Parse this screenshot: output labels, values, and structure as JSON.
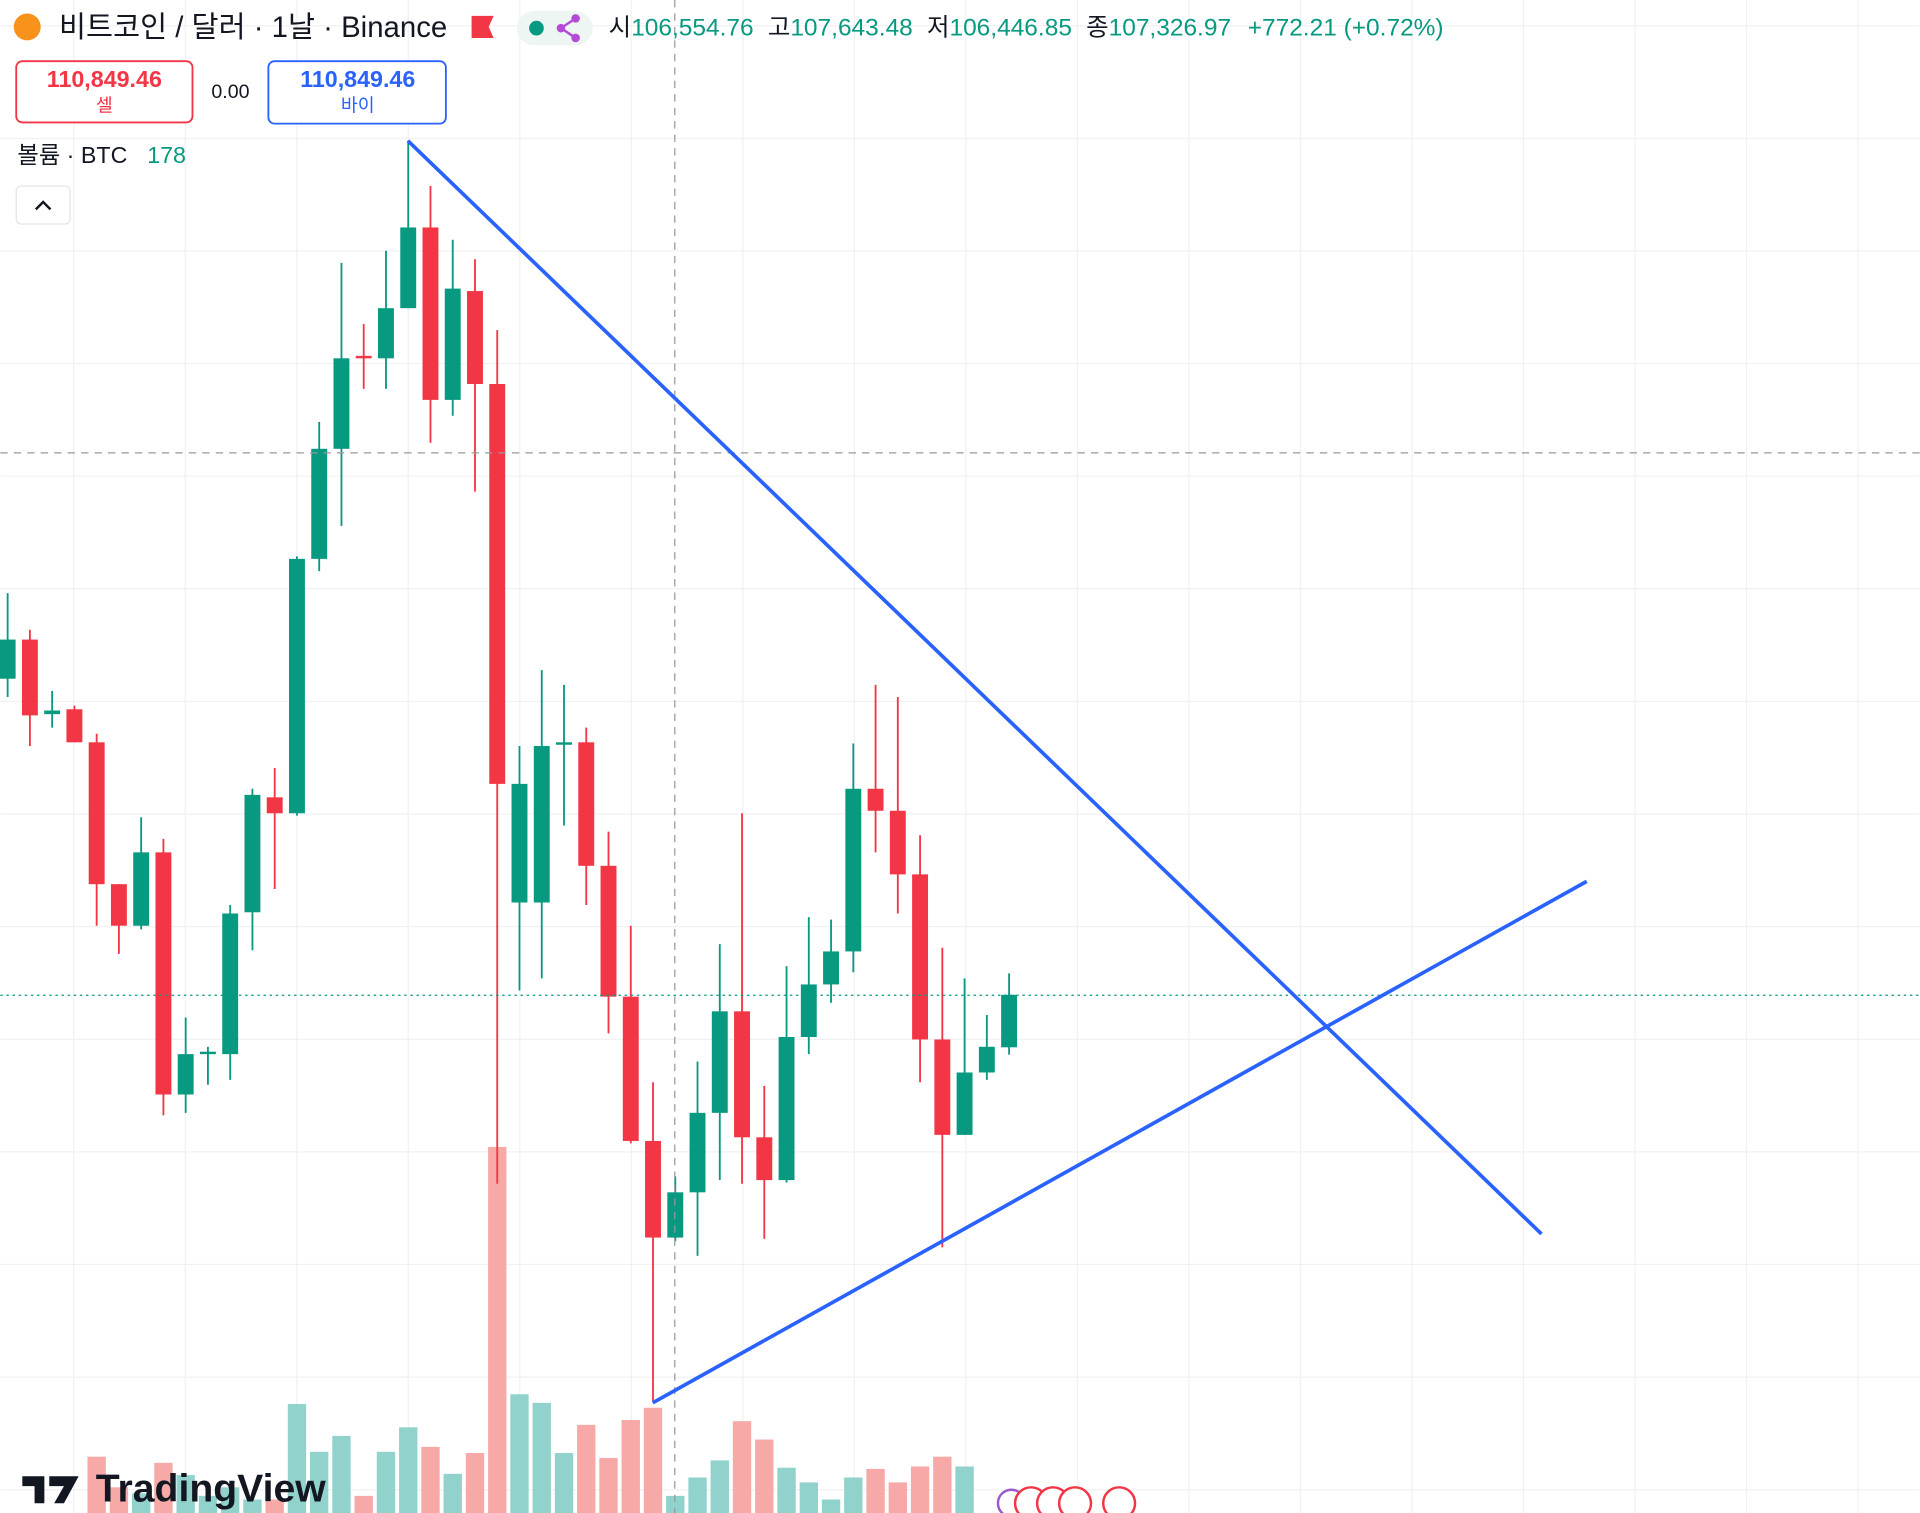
{
  "header": {
    "title": "비트코인 / 달러 · 1날 · Binance",
    "ohlc": [
      {
        "label": "시",
        "value": "106,554.76"
      },
      {
        "label": "고",
        "value": "107,643.48"
      },
      {
        "label": "저",
        "value": "106,446.85"
      },
      {
        "label": "종",
        "value": "107,326.97"
      }
    ],
    "change": "+772.21 (+0.72%)"
  },
  "trade_panel": {
    "sell_price": "110,849.46",
    "sell_label": "셀",
    "spread": "0.00",
    "buy_price": "110,849.46",
    "buy_label": "바이"
  },
  "volume_legend": {
    "label": "볼륨 · BTC",
    "value": "178"
  },
  "branding": "TradingView",
  "chart_data": {
    "type": "candlestick",
    "open": [
      111980,
      112556,
      111458,
      111530,
      111044,
      108956,
      108344,
      109424,
      105860,
      106454,
      106454,
      108542,
      110234,
      110000,
      113744,
      115364,
      116732,
      116696,
      117434,
      118622,
      116084,
      117686,
      116318,
      108686,
      108686,
      111008,
      111044,
      109226,
      107300,
      105176,
      103754,
      104420,
      105590,
      107084,
      105230,
      104600,
      106706,
      107480,
      107966,
      110360,
      110036,
      109100,
      106670,
      105266,
      106184,
      106554.76
    ],
    "high": [
      113240,
      112700,
      111800,
      111584,
      111170,
      108956,
      109940,
      109622,
      106994,
      106562,
      108650,
      110360,
      110666,
      113780,
      115760,
      118100,
      117200,
      118280,
      119900,
      119234,
      118442,
      118154,
      117110,
      110990,
      112106,
      111890,
      111260,
      109730,
      108344,
      106040,
      104654,
      106346,
      108074,
      110000,
      105986,
      107750,
      108470,
      108434,
      111026,
      111890,
      111710,
      109676,
      108020,
      107570,
      107030,
      107643.48
    ],
    "low": [
      111710,
      110990,
      111260,
      111044,
      108344,
      107930,
      108290,
      105554,
      105590,
      106004,
      106076,
      107984,
      108884,
      109964,
      113564,
      114230,
      116246,
      116246,
      117434,
      115454,
      115850,
      114734,
      104546,
      107390,
      107570,
      109820,
      108650,
      106760,
      105140,
      101342,
      103700,
      103484,
      104600,
      104546,
      103736,
      104564,
      106454,
      107210,
      107660,
      109424,
      108524,
      106040,
      103610,
      105266,
      106076,
      106446.85
    ],
    "close": [
      112556,
      111440,
      111512,
      111044,
      108956,
      108344,
      109424,
      105860,
      106454,
      106490,
      108524,
      110270,
      110000,
      113744,
      115364,
      116696,
      116696,
      117434,
      118622,
      116084,
      117722,
      116318,
      110432,
      110432,
      110990,
      111044,
      109226,
      107300,
      105176,
      103754,
      104420,
      105590,
      107084,
      105230,
      104600,
      106706,
      107480,
      107966,
      110360,
      110036,
      109100,
      106670,
      105266,
      106184,
      106562,
      107326.97
    ],
    "volume": [
      null,
      null,
      null,
      null,
      4600,
      2100,
      1600,
      4100,
      3100,
      1400,
      2100,
      1100,
      1100,
      8900,
      5000,
      6300,
      1400,
      5000,
      7000,
      5400,
      3200,
      4900,
      29900,
      9700,
      9000,
      4900,
      7200,
      4500,
      7600,
      8600,
      1400,
      2900,
      4300,
      7500,
      6000,
      3700,
      2500,
      1100,
      2900,
      3600,
      2500,
      3800,
      4600,
      3800,
      null,
      178
    ],
    "ylim": [
      99700,
      121970
    ],
    "vlim": [
      0,
      30000
    ],
    "up_color": "#089981",
    "down_color": "#f23645",
    "volume_up_color": "#92d2cc",
    "volume_down_color": "#f7a9a7",
    "grid": true
  }
}
